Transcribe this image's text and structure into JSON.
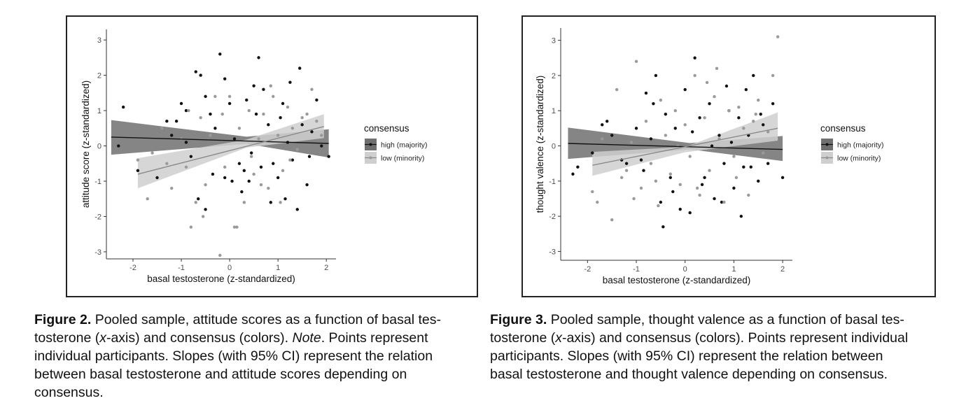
{
  "chart_data": [
    {
      "type": "scatter",
      "xlabel": "basal testosterone (z-standardized)",
      "ylabel": "attitude score (z-standardized)",
      "xticks": [
        -2,
        -1,
        0,
        1,
        2
      ],
      "yticks": [
        -3,
        -2,
        -1,
        0,
        1,
        2,
        3
      ],
      "xlim": [
        -2.55,
        2.2
      ],
      "ylim": [
        -3.2,
        3.3
      ],
      "legend": {
        "title": "consensus",
        "position": "right",
        "entries": [
          "high (majority)",
          "low (minority)"
        ]
      },
      "series": [
        {
          "name": "high (majority)",
          "color": "#111111",
          "band_color": "#707070",
          "fit": {
            "x": [
              -2.45,
              2.05
            ],
            "y": [
              0.25,
              0.07
            ]
          },
          "ci": {
            "x": [
              -2.45,
              0.35,
              2.05
            ],
            "upper": [
              0.73,
              0.26,
              0.47
            ],
            "lower": [
              -0.25,
              0.06,
              -0.33
            ]
          },
          "points": [
            [
              -2.2,
              1.1
            ],
            [
              -2.3,
              0.0
            ],
            [
              -1.9,
              -0.7
            ],
            [
              -1.2,
              0.3
            ],
            [
              -1.0,
              1.2
            ],
            [
              -0.9,
              1.0
            ],
            [
              -0.7,
              2.1
            ],
            [
              -0.6,
              2.0
            ],
            [
              -0.5,
              1.4
            ],
            [
              -0.4,
              0.9
            ],
            [
              -0.3,
              0.5
            ],
            [
              -0.2,
              2.6
            ],
            [
              -0.1,
              1.9
            ],
            [
              0.0,
              1.2
            ],
            [
              0.1,
              0.2
            ],
            [
              0.2,
              -0.5
            ],
            [
              0.3,
              -0.7
            ],
            [
              0.4,
              -1.0
            ],
            [
              0.5,
              1.7
            ],
            [
              0.6,
              2.5
            ],
            [
              0.7,
              1.6
            ],
            [
              0.8,
              0.6
            ],
            [
              0.9,
              -0.5
            ],
            [
              1.0,
              -0.9
            ],
            [
              1.1,
              1.2
            ],
            [
              1.2,
              0.1
            ],
            [
              1.3,
              -0.4
            ],
            [
              1.4,
              -1.8
            ],
            [
              1.5,
              0.6
            ],
            [
              1.6,
              -1.1
            ],
            [
              1.7,
              0.4
            ],
            [
              1.8,
              1.3
            ],
            [
              -1.5,
              -0.9
            ],
            [
              -1.3,
              0.7
            ],
            [
              -0.8,
              -0.3
            ],
            [
              -0.65,
              -1.5
            ],
            [
              -0.5,
              -1.8
            ],
            [
              -0.35,
              -0.8
            ],
            [
              0.05,
              -1.0
            ],
            [
              0.25,
              -1.3
            ],
            [
              0.45,
              -0.2
            ],
            [
              0.65,
              -0.6
            ],
            [
              0.85,
              -1.6
            ],
            [
              1.05,
              0.8
            ],
            [
              1.25,
              1.8
            ],
            [
              1.45,
              2.2
            ],
            [
              1.65,
              -0.3
            ],
            [
              1.9,
              0.0
            ],
            [
              -0.9,
              0.1
            ],
            [
              -0.1,
              -0.9
            ],
            [
              2.05,
              -0.3
            ],
            [
              0.55,
              0.9
            ],
            [
              -1.1,
              0.7
            ],
            [
              0.35,
              1.3
            ],
            [
              1.15,
              -1.5
            ]
          ]
        },
        {
          "name": "low (minority)",
          "color": "#9a9a9a",
          "band_color": "#cfcfcf",
          "fit": {
            "x": [
              -1.9,
              1.95
            ],
            "y": [
              -0.8,
              0.55
            ]
          },
          "ci": {
            "x": [
              -1.9,
              0.35,
              1.95
            ],
            "upper": [
              -0.35,
              0.18,
              0.9
            ],
            "lower": [
              -1.2,
              -0.05,
              0.22
            ]
          },
          "points": [
            [
              -1.9,
              -0.4
            ],
            [
              -1.7,
              -1.5
            ],
            [
              -1.6,
              -0.2
            ],
            [
              -1.4,
              0.5
            ],
            [
              -1.2,
              -1.2
            ],
            [
              -1.0,
              0.2
            ],
            [
              -0.9,
              -0.6
            ],
            [
              -0.8,
              -2.3
            ],
            [
              -0.7,
              -1.6
            ],
            [
              -0.6,
              0.8
            ],
            [
              -0.5,
              -1.1
            ],
            [
              -0.4,
              0.3
            ],
            [
              -0.3,
              1.4
            ],
            [
              -0.2,
              -3.1
            ],
            [
              -0.1,
              -0.6
            ],
            [
              0.0,
              1.4
            ],
            [
              0.1,
              -2.3
            ],
            [
              0.2,
              0.5
            ],
            [
              0.3,
              -1.6
            ],
            [
              0.4,
              1.0
            ],
            [
              0.5,
              -0.8
            ],
            [
              0.6,
              0.2
            ],
            [
              0.7,
              0.9
            ],
            [
              0.8,
              -1.2
            ],
            [
              0.9,
              1.4
            ],
            [
              1.0,
              0.3
            ],
            [
              1.1,
              -0.7
            ],
            [
              1.2,
              1.1
            ],
            [
              1.3,
              0.5
            ],
            [
              1.4,
              -0.1
            ],
            [
              1.5,
              0.8
            ],
            [
              1.6,
              0.9
            ],
            [
              1.7,
              1.6
            ],
            [
              1.8,
              0.7
            ],
            [
              1.9,
              0.3
            ],
            [
              -1.3,
              -0.5
            ],
            [
              -0.55,
              -2.0
            ],
            [
              0.15,
              -2.3
            ],
            [
              0.85,
              1.7
            ],
            [
              1.05,
              -1.6
            ],
            [
              -0.15,
              0.9
            ],
            [
              0.45,
              -0.3
            ],
            [
              -0.85,
              1.0
            ],
            [
              1.25,
              -0.4
            ],
            [
              0.65,
              -1.1
            ]
          ]
        }
      ]
    },
    {
      "type": "scatter",
      "xlabel": "basal testosterone (z-standardized)",
      "ylabel": "thought valence (z-standardized)",
      "xticks": [
        -2,
        -1,
        0,
        1,
        2
      ],
      "yticks": [
        -3,
        -2,
        -1,
        0,
        1,
        2,
        3
      ],
      "xlim": [
        -2.55,
        2.2
      ],
      "ylim": [
        -3.25,
        3.35
      ],
      "legend": {
        "title": "consensus",
        "position": "right",
        "entries": [
          "high (majority)",
          "low (minority)"
        ]
      },
      "series": [
        {
          "name": "high (majority)",
          "color": "#111111",
          "band_color": "#707070",
          "fit": {
            "x": [
              -2.4,
              2.0
            ],
            "y": [
              0.07,
              -0.1
            ]
          },
          "ci": {
            "x": [
              -2.4,
              0.1,
              2.0
            ],
            "upper": [
              0.52,
              0.08,
              0.28
            ],
            "lower": [
              -0.37,
              -0.1,
              -0.43
            ]
          },
          "points": [
            [
              -2.3,
              -0.8
            ],
            [
              -2.2,
              -0.6
            ],
            [
              -1.9,
              -0.2
            ],
            [
              -1.7,
              0.6
            ],
            [
              -1.6,
              0.7
            ],
            [
              -1.5,
              0.3
            ],
            [
              -1.3,
              -0.4
            ],
            [
              -1.0,
              0.5
            ],
            [
              -0.9,
              -0.4
            ],
            [
              -0.8,
              1.5
            ],
            [
              -0.7,
              0.2
            ],
            [
              -0.6,
              2.0
            ],
            [
              -0.5,
              -1.6
            ],
            [
              -0.4,
              0.9
            ],
            [
              -0.3,
              -0.9
            ],
            [
              -0.2,
              0.5
            ],
            [
              -0.1,
              -1.8
            ],
            [
              0.0,
              1.6
            ],
            [
              0.1,
              -1.9
            ],
            [
              0.2,
              2.5
            ],
            [
              0.3,
              0.8
            ],
            [
              0.4,
              -0.9
            ],
            [
              0.5,
              1.2
            ],
            [
              0.6,
              -1.5
            ],
            [
              0.7,
              0.3
            ],
            [
              0.8,
              -0.5
            ],
            [
              0.9,
              1.0
            ],
            [
              1.0,
              -1.2
            ],
            [
              1.1,
              0.8
            ],
            [
              1.2,
              -0.6
            ],
            [
              1.3,
              0.3
            ],
            [
              1.4,
              2.0
            ],
            [
              1.5,
              -1.0
            ],
            [
              1.6,
              0.6
            ],
            [
              1.7,
              -0.5
            ],
            [
              1.8,
              1.2
            ],
            [
              2.0,
              -0.9
            ],
            [
              -1.2,
              -0.5
            ],
            [
              -0.45,
              -2.3
            ],
            [
              -0.25,
              -1.3
            ],
            [
              0.35,
              -1.1
            ],
            [
              0.75,
              -1.6
            ],
            [
              0.95,
              0.1
            ],
            [
              1.15,
              -2.0
            ],
            [
              1.35,
              -0.6
            ],
            [
              1.55,
              0.9
            ],
            [
              -0.65,
              1.2
            ],
            [
              0.15,
              0.4
            ],
            [
              0.55,
              0.0
            ],
            [
              -0.85,
              -0.7
            ],
            [
              1.25,
              1.6
            ],
            [
              0.85,
              1.7
            ]
          ]
        },
        {
          "name": "low (minority)",
          "color": "#9a9a9a",
          "band_color": "#cfcfcf",
          "fit": {
            "x": [
              -1.9,
              1.9
            ],
            "y": [
              -0.55,
              0.5
            ]
          },
          "ci": {
            "x": [
              -1.9,
              0.0,
              1.9
            ],
            "upper": [
              -0.17,
              -0.03,
              0.95
            ],
            "lower": [
              -0.85,
              -0.18,
              0.15
            ]
          },
          "points": [
            [
              -1.9,
              -1.3
            ],
            [
              -1.8,
              -1.6
            ],
            [
              -1.7,
              0.2
            ],
            [
              -1.5,
              -2.1
            ],
            [
              -1.4,
              1.6
            ],
            [
              -1.2,
              -0.7
            ],
            [
              -1.1,
              0.1
            ],
            [
              -1.0,
              2.4
            ],
            [
              -0.9,
              -1.2
            ],
            [
              -0.8,
              0.7
            ],
            [
              -0.7,
              -0.5
            ],
            [
              -0.6,
              -1.0
            ],
            [
              -0.5,
              1.3
            ],
            [
              -0.4,
              0.3
            ],
            [
              -0.3,
              -0.8
            ],
            [
              -0.2,
              1.0
            ],
            [
              -0.1,
              -1.1
            ],
            [
              0.0,
              0.6
            ],
            [
              0.1,
              -0.3
            ],
            [
              0.2,
              2.0
            ],
            [
              0.3,
              -1.4
            ],
            [
              0.4,
              0.8
            ],
            [
              0.5,
              -0.7
            ],
            [
              0.6,
              1.4
            ],
            [
              0.7,
              0.2
            ],
            [
              0.8,
              -1.6
            ],
            [
              0.9,
              1.0
            ],
            [
              1.0,
              -0.3
            ],
            [
              1.1,
              1.1
            ],
            [
              1.2,
              0.5
            ],
            [
              1.3,
              -1.4
            ],
            [
              1.4,
              0.7
            ],
            [
              1.5,
              1.3
            ],
            [
              1.6,
              -0.2
            ],
            [
              1.7,
              0.4
            ],
            [
              1.8,
              2.0
            ],
            [
              1.9,
              3.1
            ],
            [
              -1.3,
              -0.9
            ],
            [
              -0.55,
              -1.7
            ],
            [
              0.25,
              -1.2
            ],
            [
              0.65,
              2.2
            ],
            [
              1.05,
              -0.9
            ],
            [
              -0.15,
              0.0
            ],
            [
              0.45,
              1.8
            ],
            [
              -1.05,
              -1.5
            ],
            [
              1.45,
              0.9
            ]
          ]
        }
      ]
    }
  ],
  "captions": [
    {
      "label": "Figure 2.",
      "text": " Pooled sample, attitude scores as a function of basal tes-",
      "line2a": "tosterone (",
      "line2b": "x",
      "line2c": "-axis) and consensus (colors). ",
      "note": "Note",
      "line2d": ". Points represent",
      "line3": "individual participants. Slopes (with 95% CI) represent the relation",
      "line4": "between basal testosterone and attitude scores depending on",
      "line5": "consensus."
    },
    {
      "label": "Figure 3.",
      "text": " Pooled sample, thought valence as a function of basal tes-",
      "line2a": "tosterone (",
      "line2b": "x",
      "line2c": "-axis) and consensus (colors). Points represent individual",
      "line3": "participants. Slopes (with 95% CI) represent the relation between",
      "line4": "basal testosterone and thought valence depending on consensus."
    }
  ]
}
